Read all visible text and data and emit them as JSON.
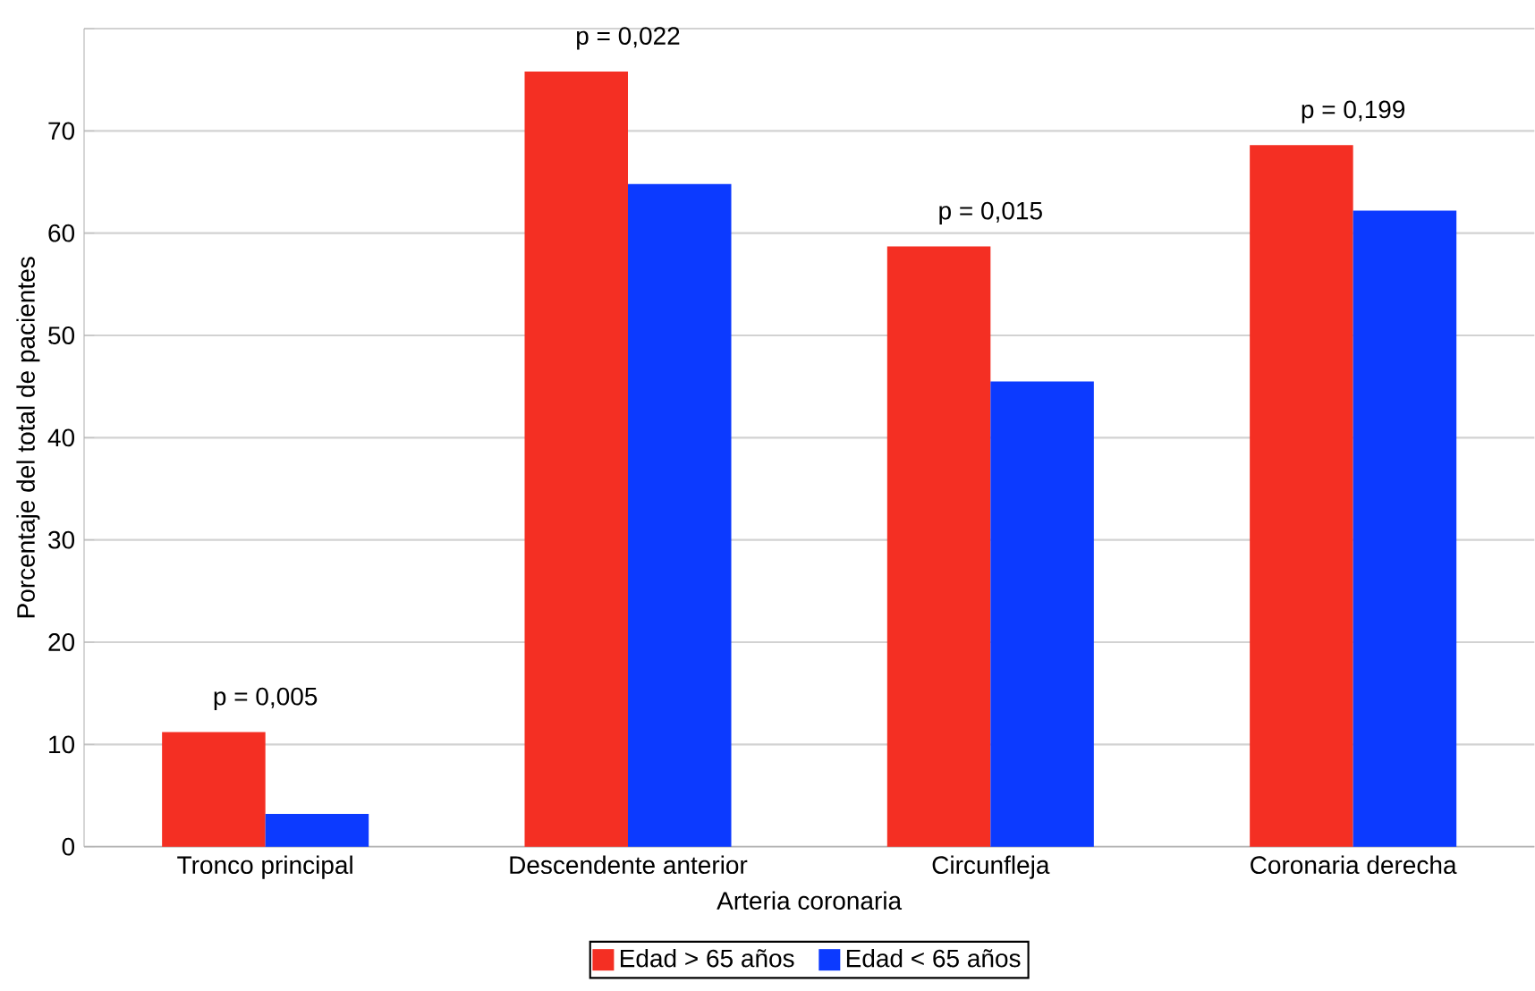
{
  "chart_data": {
    "type": "bar",
    "xlabel": "Arteria coronaria",
    "ylabel": "Porcentaje del total de pacientes",
    "categories": [
      "Tronco principal",
      "Descendente anterior",
      "Circunfleja",
      "Coronaria derecha"
    ],
    "series": [
      {
        "name": "Edad > 65 años",
        "color": "#f42f23",
        "values": [
          11.2,
          75.8,
          58.7,
          68.6
        ]
      },
      {
        "name": "Edad < 65 años",
        "color": "#0c3aff",
        "values": [
          3.2,
          64.8,
          45.5,
          62.2
        ]
      }
    ],
    "ylim": [
      0,
      80
    ],
    "yticks": [
      0,
      10,
      20,
      30,
      40,
      50,
      60,
      70,
      {
        "value": 80,
        "label": null
      }
    ],
    "annotations": [
      {
        "text": "p = 0,005",
        "x": "Tronco principal",
        "y": 11.2
      },
      {
        "text": "p = 0,022",
        "x": "Descendente anterior",
        "y": 75.8
      },
      {
        "text": "p = 0,015",
        "x": "Circunfleja",
        "y": 58.7
      },
      {
        "text": "p = 0,199",
        "x": "Coronaria derecha",
        "y": 68.6
      }
    ],
    "grid": "y",
    "legend": "bottom"
  }
}
